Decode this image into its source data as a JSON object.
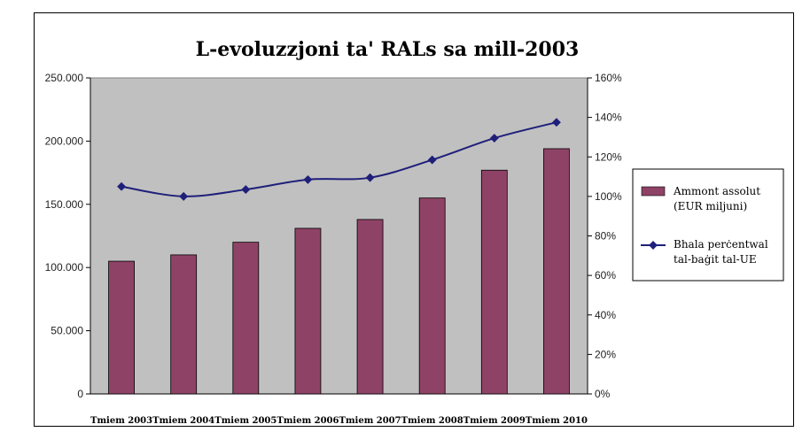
{
  "chart_data": {
    "type": "bar+line",
    "title": "L-evoluzzjoni ta' RALs sa mill-2003",
    "categories": [
      "Tmiem 2003",
      "Tmiem 2004",
      "Tmiem 2005",
      "Tmiem 2006",
      "Tmiem 2007",
      "Tmiem 2008",
      "Tmiem 2009",
      "Tmiem 2010"
    ],
    "series": [
      {
        "name": "Ammont assolut (EUR miljuni)",
        "name_lines": [
          "Ammont assolut",
          "(EUR miljuni)"
        ],
        "type": "bar",
        "axis": "left",
        "values": [
          105000,
          110000,
          120000,
          131000,
          138000,
          155000,
          177000,
          194000
        ],
        "color": "#8e4366"
      },
      {
        "name": "Bhala perċentwal tal-baġit tal-UE",
        "name_lines": [
          "Bhala perċentwal",
          "tal-baġit tal-UE"
        ],
        "type": "line",
        "axis": "right",
        "values": [
          105,
          100,
          103.5,
          108.5,
          109.5,
          118.5,
          129.5,
          137.5
        ],
        "color": "#1f1f7a"
      }
    ],
    "left_axis": {
      "ylim": [
        0,
        250000
      ],
      "ticks": [
        0,
        50000,
        100000,
        150000,
        200000,
        250000
      ],
      "tick_labels": [
        "0",
        "50.000",
        "100.000",
        "150.000",
        "200.000",
        "250.000"
      ]
    },
    "right_axis": {
      "ylim": [
        0,
        160
      ],
      "ticks": [
        0,
        20,
        40,
        60,
        80,
        100,
        120,
        140,
        160
      ],
      "tick_labels": [
        "0%",
        "20%",
        "40%",
        "60%",
        "80%",
        "100%",
        "120%",
        "140%",
        "160%"
      ]
    },
    "plot_background": "#c0c0c0",
    "legend_position": "right"
  }
}
